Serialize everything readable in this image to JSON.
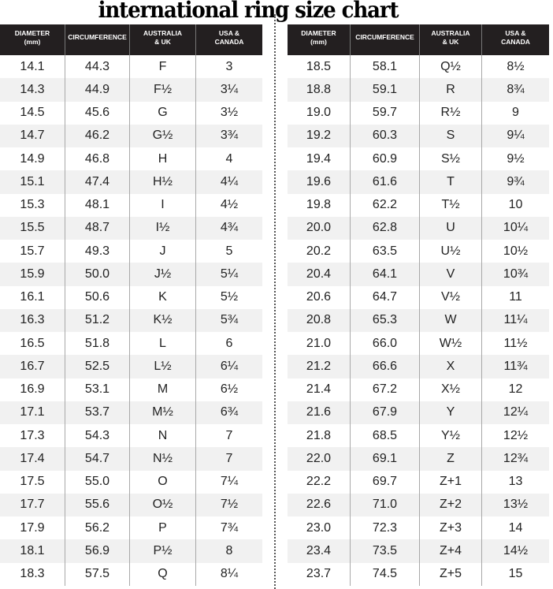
{
  "title": "international ring size chart",
  "headers": [
    "DIAMETER\n(mm)",
    "CIRCUMFERENCE",
    "AUSTRALIA\n& UK",
    "USA &\nCANADA"
  ],
  "left_rows": [
    [
      "14.1",
      "44.3",
      "F",
      "3"
    ],
    [
      "14.3",
      "44.9",
      "F½",
      "3¼"
    ],
    [
      "14.5",
      "45.6",
      "G",
      "3½"
    ],
    [
      "14.7",
      "46.2",
      "G½",
      "3¾"
    ],
    [
      "14.9",
      "46.8",
      "H",
      "4"
    ],
    [
      "15.1",
      "47.4",
      "H½",
      "4¼"
    ],
    [
      "15.3",
      "48.1",
      "I",
      "4½"
    ],
    [
      "15.5",
      "48.7",
      "I½",
      "4¾"
    ],
    [
      "15.7",
      "49.3",
      "J",
      "5"
    ],
    [
      "15.9",
      "50.0",
      "J½",
      "5¼"
    ],
    [
      "16.1",
      "50.6",
      "K",
      "5½"
    ],
    [
      "16.3",
      "51.2",
      "K½",
      "5¾"
    ],
    [
      "16.5",
      "51.8",
      "L",
      "6"
    ],
    [
      "16.7",
      "52.5",
      "L½",
      "6¼"
    ],
    [
      "16.9",
      "53.1",
      "M",
      "6½"
    ],
    [
      "17.1",
      "53.7",
      "M½",
      "6¾"
    ],
    [
      "17.3",
      "54.3",
      "N",
      "7"
    ],
    [
      "17.4",
      "54.7",
      "N½",
      "7"
    ],
    [
      "17.5",
      "55.0",
      "O",
      "7¼"
    ],
    [
      "17.7",
      "55.6",
      "O½",
      "7½"
    ],
    [
      "17.9",
      "56.2",
      "P",
      "7¾"
    ],
    [
      "18.1",
      "56.9",
      "P½",
      "8"
    ],
    [
      "18.3",
      "57.5",
      "Q",
      "8¼"
    ]
  ],
  "right_rows": [
    [
      "18.5",
      "58.1",
      "Q½",
      "8½"
    ],
    [
      "18.8",
      "59.1",
      "R",
      "8¾"
    ],
    [
      "19.0",
      "59.7",
      "R½",
      "9"
    ],
    [
      "19.2",
      "60.3",
      "S",
      "9¼"
    ],
    [
      "19.4",
      "60.9",
      "S½",
      "9½"
    ],
    [
      "19.6",
      "61.6",
      "T",
      "9¾"
    ],
    [
      "19.8",
      "62.2",
      "T½",
      "10"
    ],
    [
      "20.0",
      "62.8",
      "U",
      "10¼"
    ],
    [
      "20.2",
      "63.5",
      "U½",
      "10½"
    ],
    [
      "20.4",
      "64.1",
      "V",
      "10¾"
    ],
    [
      "20.6",
      "64.7",
      "V½",
      "11"
    ],
    [
      "20.8",
      "65.3",
      "W",
      "11¼"
    ],
    [
      "21.0",
      "66.0",
      "W½",
      "11½"
    ],
    [
      "21.2",
      "66.6",
      "X",
      "11¾"
    ],
    [
      "21.4",
      "67.2",
      "X½",
      "12"
    ],
    [
      "21.6",
      "67.9",
      "Y",
      "12¼"
    ],
    [
      "21.8",
      "68.5",
      "Y½",
      "12½"
    ],
    [
      "22.0",
      "69.1",
      "Z",
      "12¾"
    ],
    [
      "22.2",
      "69.7",
      "Z+1",
      "13"
    ],
    [
      "22.6",
      "71.0",
      "Z+2",
      "13½"
    ],
    [
      "23.0",
      "72.3",
      "Z+3",
      "14"
    ],
    [
      "23.4",
      "73.5",
      "Z+4",
      "14½"
    ],
    [
      "23.7",
      "74.5",
      "Z+5",
      "15"
    ]
  ]
}
